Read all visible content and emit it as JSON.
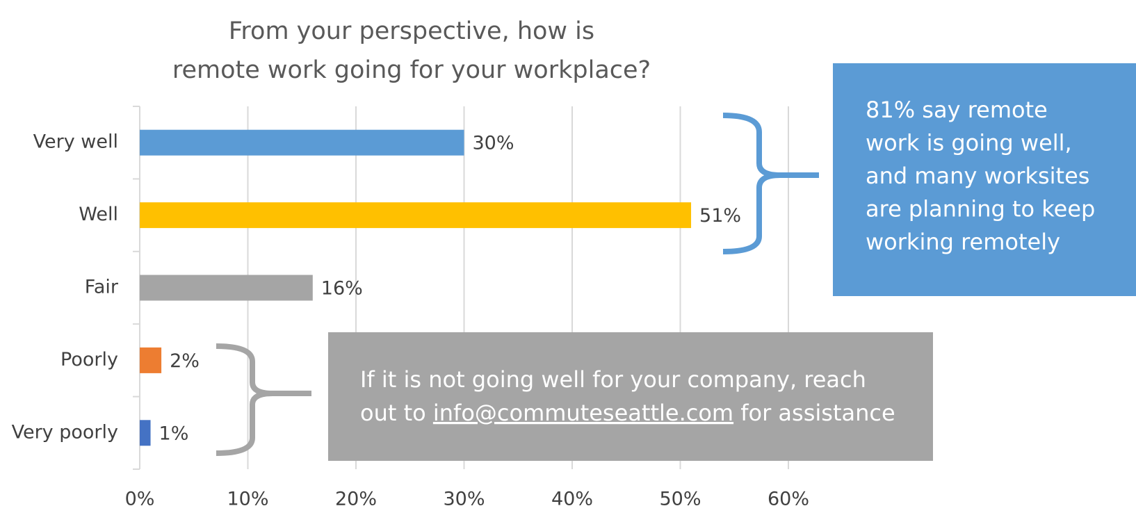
{
  "chart_data": {
    "type": "bar",
    "orientation": "horizontal",
    "title": [
      "From your perspective, how is",
      "remote work going for your workplace?"
    ],
    "categories": [
      "Very well",
      "Well",
      "Fair",
      "Poorly",
      "Very poorly"
    ],
    "values": [
      30,
      51,
      16,
      2,
      1
    ],
    "value_labels": [
      "30%",
      "51%",
      "16%",
      "2%",
      "1%"
    ],
    "colors": [
      "#5b9bd5",
      "#ffc000",
      "#a5a5a5",
      "#ed7d31",
      "#4472c4"
    ],
    "xlim": [
      0,
      60
    ],
    "xticks": [
      {
        "value": 0,
        "label": "0%"
      },
      {
        "value": 10,
        "label": "10%"
      },
      {
        "value": 20,
        "label": "20%"
      },
      {
        "value": 30,
        "label": "30%"
      },
      {
        "value": 40,
        "label": "40%"
      },
      {
        "value": 50,
        "label": "50%"
      },
      {
        "value": 60,
        "label": "60%"
      }
    ],
    "grid": true,
    "annotations": [
      {
        "color": "#5b9bd5",
        "lines": [
          "81% say remote",
          "work is going well,",
          "and many worksites",
          "are planning to keep",
          "working remotely"
        ]
      },
      {
        "color": "#a5a5a5",
        "line": "If it is not going well for your company, reach",
        "before_link": "out to",
        "link": "info@commuteseattle.com",
        "after_link": "for assistance"
      }
    ]
  }
}
